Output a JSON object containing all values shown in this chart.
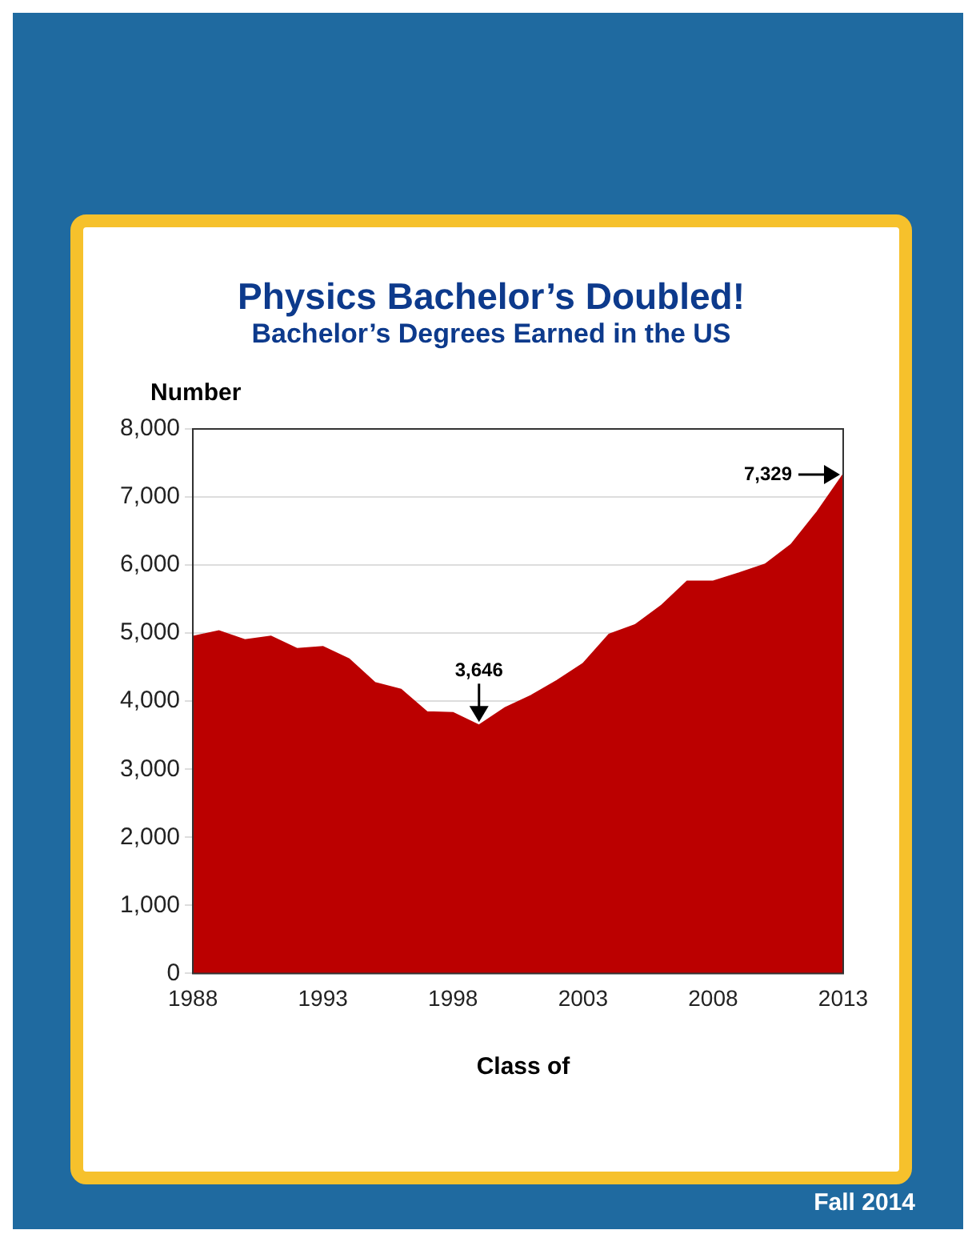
{
  "chart_data": {
    "type": "area",
    "title": "Physics Bachelor’s Doubled!",
    "subtitle": "Bachelor’s Degrees Earned in the US",
    "ylabel": "Number",
    "xlabel": "Class of",
    "x": [
      1988,
      1989,
      1990,
      1991,
      1992,
      1993,
      1994,
      1995,
      1996,
      1997,
      1998,
      1999,
      2000,
      2001,
      2002,
      2003,
      2004,
      2005,
      2006,
      2007,
      2008,
      2009,
      2010,
      2011,
      2012,
      2013
    ],
    "series": [
      {
        "color": "#bb0000",
        "values": [
          4950,
          5030,
          4900,
          4950,
          4770,
          4800,
          4620,
          4270,
          4170,
          3840,
          3830,
          3646,
          3900,
          4080,
          4300,
          4550,
          4980,
          5120,
          5400,
          5760,
          5760,
          5880,
          6010,
          6300,
          6780,
          7329
        ]
      }
    ],
    "xlim": [
      1988,
      2013
    ],
    "xticks": [
      1988,
      1993,
      1998,
      2003,
      2008,
      2013
    ],
    "ylim": [
      0,
      8000
    ],
    "yticks": [
      {
        "value": 0,
        "label": "0"
      },
      {
        "value": 1000,
        "label": "1,000"
      },
      {
        "value": 2000,
        "label": "2,000"
      },
      {
        "value": 3000,
        "label": "3,000"
      },
      {
        "value": 4000,
        "label": "4,000"
      },
      {
        "value": 5000,
        "label": "5,000"
      },
      {
        "value": 6000,
        "label": "6,000"
      },
      {
        "value": 7000,
        "label": "7,000"
      },
      {
        "value": 8000,
        "label": "8,000"
      }
    ],
    "grid": "y",
    "legend": false,
    "annotations": [
      {
        "text": "3,646",
        "x": 1999,
        "y": 3646
      },
      {
        "text": "7,329",
        "x": 2013,
        "y": 7329
      },
      "Fall 2014"
    ]
  }
}
